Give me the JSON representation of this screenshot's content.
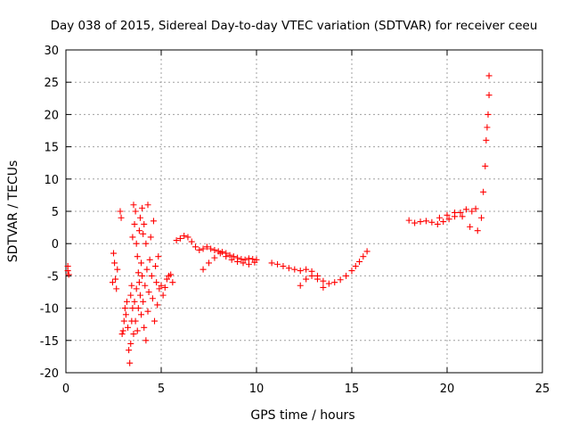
{
  "chart_data": {
    "type": "scatter",
    "title": "Day 038 of 2015, Sidereal Day-to-day VTEC variation (SDTVAR) for receiver ceeu",
    "xlabel": "GPS time / hours",
    "ylabel": "SDTVAR / TECUs",
    "xlim": [
      0,
      25
    ],
    "ylim": [
      -20,
      30
    ],
    "xticks": [
      "0",
      "5",
      "10",
      "15",
      "20",
      "25"
    ],
    "yticks": [
      "-20",
      "-15",
      "-10",
      "-5",
      "0",
      "5",
      "10",
      "15",
      "20",
      "25",
      "30"
    ],
    "grid": true,
    "marker": "+",
    "color": "#ff0000",
    "series": [
      {
        "name": "SDTVAR",
        "x": [
          0.1,
          0.1,
          0.15,
          2.45,
          2.5,
          2.55,
          2.6,
          2.65,
          2.7,
          2.85,
          2.9,
          2.95,
          3.0,
          3.05,
          3.1,
          3.15,
          3.2,
          3.25,
          3.3,
          3.35,
          3.4,
          3.4,
          3.45,
          3.45,
          3.5,
          3.5,
          3.55,
          3.55,
          3.6,
          3.6,
          3.65,
          3.65,
          3.7,
          3.7,
          3.75,
          3.75,
          3.8,
          3.8,
          3.85,
          3.85,
          3.9,
          3.9,
          3.95,
          3.95,
          4.0,
          4.0,
          4.05,
          4.05,
          4.1,
          4.1,
          4.15,
          4.2,
          4.2,
          4.25,
          4.3,
          4.3,
          4.35,
          4.4,
          4.45,
          4.5,
          4.55,
          4.6,
          4.65,
          4.7,
          4.75,
          4.8,
          4.85,
          4.9,
          5.0,
          5.1,
          5.2,
          5.3,
          5.4,
          5.5,
          5.6,
          5.8,
          6.0,
          6.2,
          6.4,
          6.6,
          6.8,
          7.0,
          7.2,
          7.4,
          7.6,
          7.8,
          8.0,
          8.2,
          8.4,
          8.6,
          8.8,
          9.0,
          9.2,
          9.4,
          9.6,
          9.8,
          10.0,
          7.2,
          7.5,
          7.8,
          8.1,
          8.4,
          8.7,
          9.0,
          9.3,
          9.6,
          9.9,
          10.8,
          11.1,
          11.4,
          11.7,
          12.0,
          12.3,
          12.6,
          12.9,
          13.2,
          13.5,
          13.8,
          14.1,
          14.4,
          14.7,
          15.0,
          15.2,
          15.4,
          15.6,
          15.8,
          12.3,
          12.6,
          12.9,
          13.2,
          13.5,
          18.0,
          18.3,
          18.6,
          18.9,
          19.2,
          19.5,
          19.8,
          20.1,
          20.4,
          20.7,
          21.0,
          21.3,
          21.5,
          19.6,
          20.0,
          20.4,
          20.8,
          21.2,
          21.6,
          21.8,
          21.9,
          22.0,
          22.05,
          22.1,
          22.15,
          22.2,
          22.2
        ],
        "y": [
          -3.5,
          -4.2,
          -4.8,
          -6.0,
          -1.5,
          -3.0,
          -5.5,
          -7.0,
          -4.0,
          5.0,
          4.0,
          -14.0,
          -13.5,
          -12.0,
          -10.0,
          -11.0,
          -9.0,
          -13.0,
          -16.5,
          -18.5,
          -15.5,
          -8.0,
          -12.0,
          -6.5,
          -10.0,
          1.0,
          -14.0,
          6.0,
          -9.0,
          3.0,
          -12.0,
          5.0,
          -7.0,
          0.0,
          -13.5,
          -2.0,
          -10.0,
          -4.5,
          -6.0,
          2.0,
          -8.0,
          4.0,
          -11.0,
          -3.0,
          -5.0,
          5.5,
          -9.0,
          1.5,
          -13.0,
          3.0,
          -6.5,
          -15.0,
          0.0,
          -4.0,
          -10.5,
          6.0,
          -7.5,
          -2.5,
          1.0,
          -5.0,
          -8.5,
          3.5,
          -12.0,
          -3.5,
          -6.0,
          -9.5,
          -2.0,
          -7.0,
          -6.5,
          -8.0,
          -6.8,
          -5.5,
          -5.0,
          -4.8,
          -6.0,
          0.5,
          0.8,
          1.2,
          1.0,
          0.3,
          -0.5,
          -1.0,
          -0.8,
          -0.5,
          -0.8,
          -1.0,
          -1.2,
          -1.3,
          -1.5,
          -1.8,
          -2.0,
          -2.2,
          -2.4,
          -2.5,
          -2.3,
          -2.4,
          -2.5,
          -4.0,
          -3.0,
          -2.2,
          -1.5,
          -2.0,
          -2.5,
          -2.8,
          -3.0,
          -3.2,
          -2.9,
          -3.0,
          -3.2,
          -3.5,
          -3.8,
          -4.0,
          -4.2,
          -4.0,
          -4.3,
          -5.0,
          -5.8,
          -6.2,
          -6.0,
          -5.6,
          -5.0,
          -4.2,
          -3.5,
          -2.8,
          -2.0,
          -1.2,
          -6.5,
          -5.5,
          -5.0,
          -5.5,
          -6.8,
          3.6,
          3.2,
          3.4,
          3.5,
          3.3,
          3.0,
          3.4,
          3.8,
          4.2,
          4.8,
          5.3,
          5.0,
          5.4,
          4.0,
          4.4,
          4.8,
          4.2,
          2.6,
          2.0,
          4.0,
          8.0,
          12.0,
          16.0,
          18.0,
          20.0,
          23.0,
          26.0
        ]
      }
    ]
  }
}
